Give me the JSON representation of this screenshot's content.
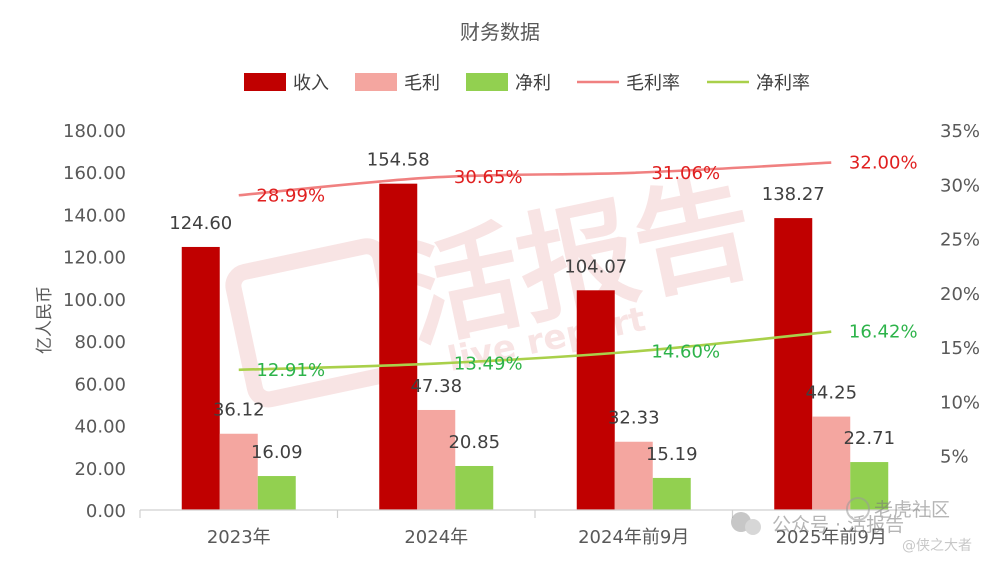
{
  "chart_data": {
    "type": "bar",
    "title": "财务数据",
    "ylabel": "亿人民币",
    "categories": [
      "2023年",
      "2024年",
      "2024年前9月",
      "2025年前9月"
    ],
    "ylim": [
      0,
      180
    ],
    "y_ticks": [
      "0.00",
      "20.00",
      "40.00",
      "60.00",
      "80.00",
      "100.00",
      "120.00",
      "140.00",
      "160.00",
      "180.00"
    ],
    "y2lim": [
      0,
      35
    ],
    "y2_ticks": [
      "5%",
      "10%",
      "15%",
      "20%",
      "25%",
      "30%",
      "35%"
    ],
    "legend_position": "top",
    "series": [
      {
        "name": "收入",
        "type": "bar",
        "axis": "left",
        "color": "#c00000",
        "values": [
          124.6,
          154.58,
          104.07,
          138.27
        ],
        "labels": [
          "124.60",
          "154.58",
          "104.07",
          "138.27"
        ]
      },
      {
        "name": "毛利",
        "type": "bar",
        "axis": "left",
        "color": "#f4a6a0",
        "values": [
          36.12,
          47.38,
          32.33,
          44.25
        ],
        "labels": [
          "36.12",
          "47.38",
          "32.33",
          "44.25"
        ]
      },
      {
        "name": "净利",
        "type": "bar",
        "axis": "left",
        "color": "#92d050",
        "values": [
          16.09,
          20.85,
          15.19,
          22.71
        ],
        "labels": [
          "16.09",
          "20.85",
          "15.19",
          "22.71"
        ]
      },
      {
        "name": "毛利率",
        "type": "line",
        "axis": "right",
        "color": "#f08080",
        "label_color": "#e02020",
        "values": [
          28.99,
          30.65,
          31.06,
          32.0
        ],
        "labels": [
          "28.99%",
          "30.65%",
          "31.06%",
          "32.00%"
        ]
      },
      {
        "name": "净利率",
        "type": "line",
        "axis": "right",
        "color": "#a9d04a",
        "label_color": "#2db34a",
        "values": [
          12.91,
          13.49,
          14.6,
          16.42
        ],
        "labels": [
          "12.91%",
          "13.49%",
          "14.60%",
          "16.42%"
        ]
      }
    ],
    "watermark": {
      "main": "活报告",
      "sub": "live report"
    },
    "footer_watermark": {
      "account": "公众号 · 活报告",
      "tag": "老虎社区",
      "handle": "@侠之大者"
    }
  }
}
